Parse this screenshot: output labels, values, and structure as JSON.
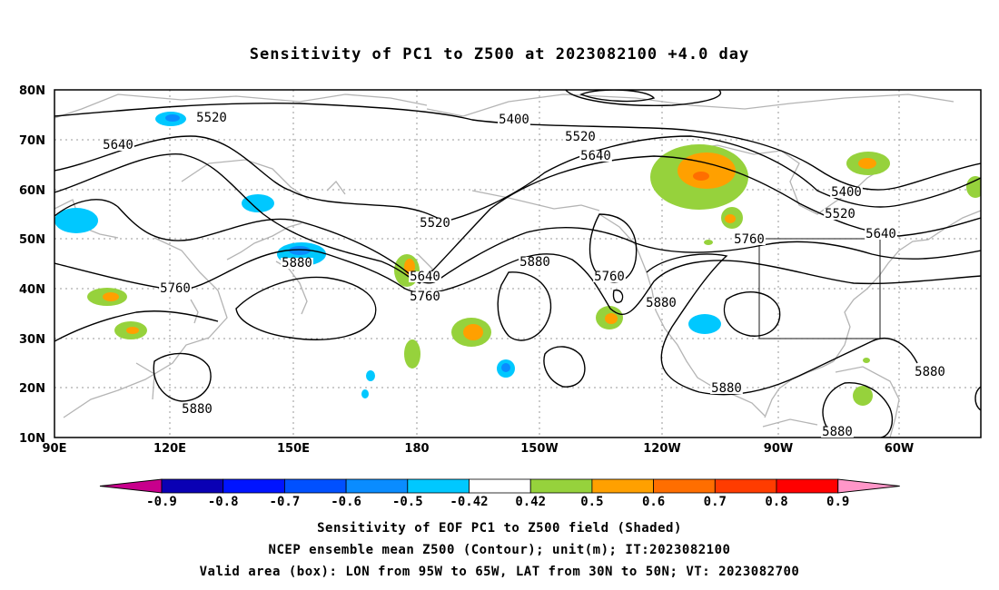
{
  "title": "Sensitivity of PC1 to Z500 at 2023082100 +4.0 day",
  "axes": {
    "lat_labels": [
      "80N",
      "70N",
      "60N",
      "50N",
      "40N",
      "30N",
      "20N",
      "10N"
    ],
    "lon_labels": [
      "90E",
      "120E",
      "150E",
      "180",
      "150W",
      "120W",
      "90W",
      "60W"
    ]
  },
  "contour_labels": [
    "5520",
    "5400",
    "5520",
    "5640",
    "5640",
    "5400",
    "5520",
    "5640",
    "5760",
    "5520",
    "5880",
    "5640",
    "5760",
    "5760",
    "5880",
    "5760",
    "5880",
    "5880",
    "5880",
    "5880",
    "5880"
  ],
  "colorbar": {
    "labels": [
      "-0.9",
      "-0.8",
      "-0.7",
      "-0.6",
      "-0.5",
      "-0.42",
      "0.42",
      "0.5",
      "0.6",
      "0.7",
      "0.8",
      "0.9"
    ],
    "colors": [
      "#0a00b4",
      "#0014ff",
      "#0050ff",
      "#0a8cff",
      "#00c8ff",
      "#ffffff",
      "#96d23c",
      "#ffa000",
      "#ff6e00",
      "#ff3c00",
      "#ff0000"
    ],
    "low_end_color": "#c8008c",
    "high_end_color": "#ff96c8"
  },
  "captions": [
    "Sensitivity of EOF PC1 to Z500 field (Shaded)",
    "NCEP ensemble mean Z500 (Contour); unit(m); IT:2023082100",
    "Valid area (box): LON from 95W to 65W, LAT from 30N to 50N; VT: 2023082700"
  ],
  "valid_area": {
    "lon_min": -95,
    "lon_max": -65,
    "lat_min": 30,
    "lat_max": 50
  }
}
